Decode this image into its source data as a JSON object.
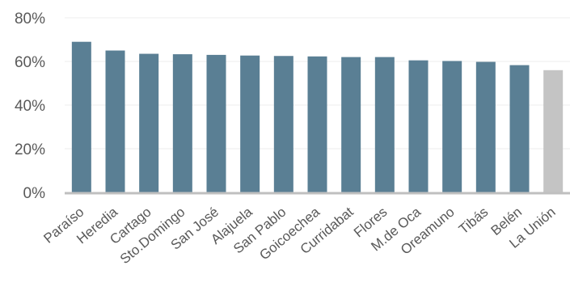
{
  "chart_data": {
    "type": "bar",
    "categories": [
      "Paraíso",
      "Heredia",
      "Cartago",
      "Sto.Domingo",
      "San José",
      "Alajuela",
      "San Pablo",
      "Goicoechea",
      "Curridabat",
      "Flores",
      "M.de Oca",
      "Oreamuno",
      "Tibás",
      "Belén",
      "La Unión"
    ],
    "values": [
      69,
      65,
      63.5,
      63.3,
      63,
      62.7,
      62.5,
      62.3,
      62,
      62,
      60.5,
      60.2,
      59.8,
      58.3,
      56
    ],
    "highlight": "La Unión",
    "ylim": [
      0,
      80
    ],
    "yticks": [
      "0%",
      "20%",
      "40%",
      "60%",
      "80%"
    ],
    "ytick_values": [
      0,
      20,
      40,
      60,
      80
    ],
    "grid": true,
    "colors": {
      "bar": "#5a7f94",
      "highlight": "#c4c4c4",
      "grid": "#eeeeee",
      "axis": "#bfbfbf",
      "text": "#595959"
    }
  }
}
